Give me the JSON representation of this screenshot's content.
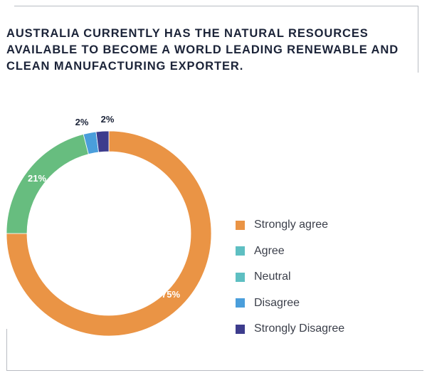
{
  "title": "AUSTRALIA CURRENTLY HAS THE NATURAL RESOURCES AVAILABLE TO BECOME A WORLD LEADING RENEWABLE AND CLEAN MANUFACTURING EXPORTER.",
  "chart_data": {
    "type": "pie",
    "variant": "donut",
    "title": "AUSTRALIA CURRENTLY HAS THE NATURAL RESOURCES AVAILABLE TO BECOME A WORLD LEADING RENEWABLE AND CLEAN MANUFACTURING EXPORTER.",
    "legend_position": "right",
    "slices": [
      {
        "name": "Strongly agree",
        "value": 75,
        "label": "75%",
        "color": "#ea9445",
        "label_color": "#ffffff"
      },
      {
        "name": "Agree",
        "value": 0,
        "label": "",
        "color": "#5ebfc2",
        "label_color": "#1b2338"
      },
      {
        "name": "Neutral",
        "value": 21,
        "label": "21%",
        "color": "#67bd7f",
        "label_color": "#ffffff"
      },
      {
        "name": "Disagree",
        "value": 2,
        "label": "2%",
        "color": "#4a9edb",
        "label_color": "#1b2338"
      },
      {
        "name": "Strongly Disagree",
        "value": 2,
        "label": "2%",
        "color": "#3d3c8d",
        "label_color": "#1b2338"
      }
    ],
    "legend": [
      {
        "label": "Strongly agree",
        "color": "#ea9445"
      },
      {
        "label": "Agree",
        "color": "#5ebfc2"
      },
      {
        "label": "Neutral",
        "color": "#5ebfc2"
      },
      {
        "label": "Disagree",
        "color": "#4a9edb"
      },
      {
        "label": "Strongly Disagree",
        "color": "#3d3c8d"
      }
    ]
  }
}
